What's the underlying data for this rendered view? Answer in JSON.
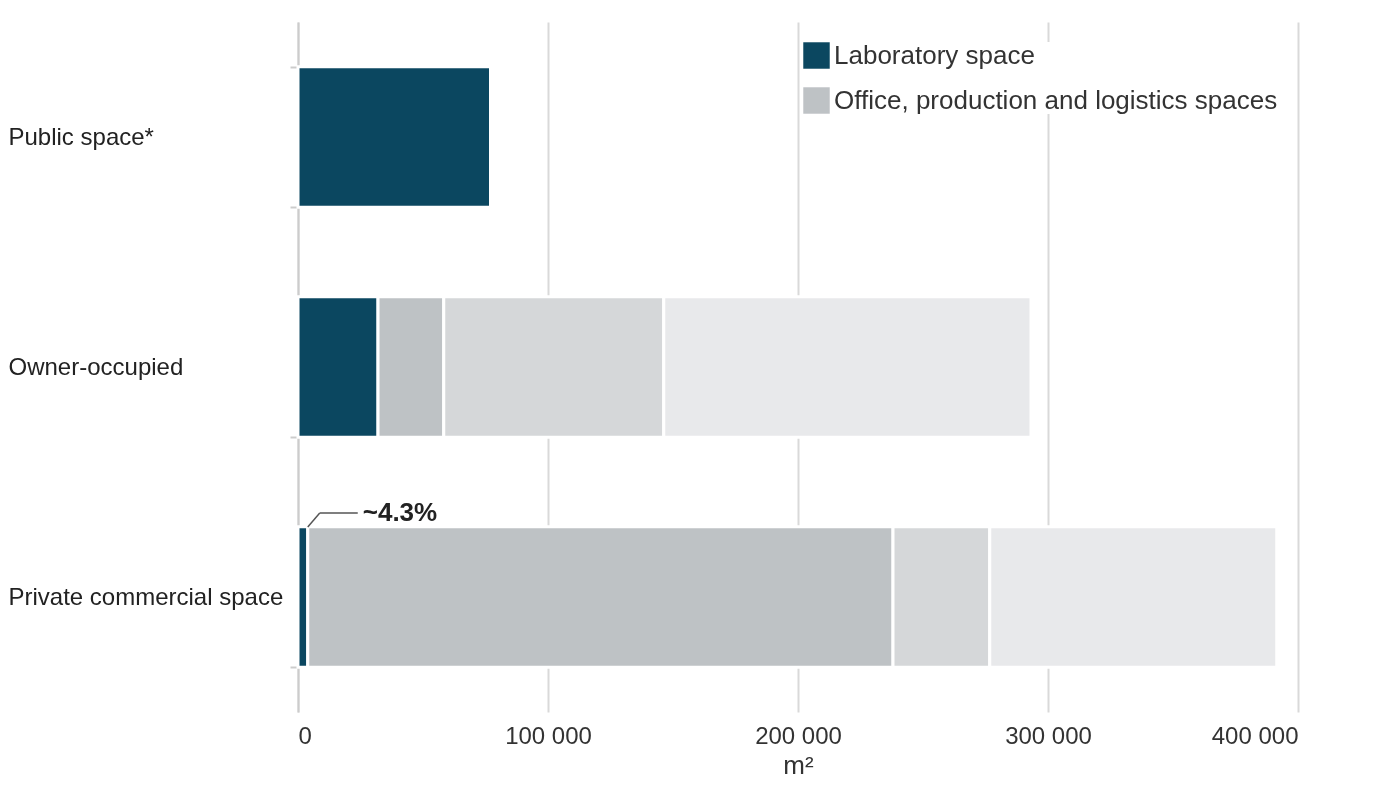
{
  "chart_data": {
    "type": "bar",
    "orientation": "horizontal",
    "stacked": true,
    "categories": [
      "Public space*",
      "Owner-occupied",
      "Private commercial space"
    ],
    "series": [
      {
        "name": "Laboratory space",
        "color": "#0b4760",
        "values": [
          77000,
          32000,
          3900
        ]
      },
      {
        "name": "Office, production and logistics spaces",
        "color": "#bec2c5",
        "values": [
          null,
          26300,
          234100
        ]
      },
      {
        "color": "#d5d7d9",
        "values": [
          null,
          88000,
          38700
        ]
      },
      {
        "color": "#e8e9eb",
        "values": [
          null,
          146900,
          114800
        ]
      }
    ],
    "xlabel": "m²",
    "xlim": [
      0,
      400000
    ],
    "xticks": [
      {
        "value": 0,
        "label": "0"
      },
      {
        "value": 100000,
        "label": "100 000"
      },
      {
        "value": 200000,
        "label": "200 000"
      },
      {
        "value": 300000,
        "label": "300 000"
      },
      {
        "value": 400000,
        "label": "400 000"
      }
    ],
    "grid": "x",
    "legend": "top right",
    "annotations": [
      "~4.3%"
    ]
  }
}
